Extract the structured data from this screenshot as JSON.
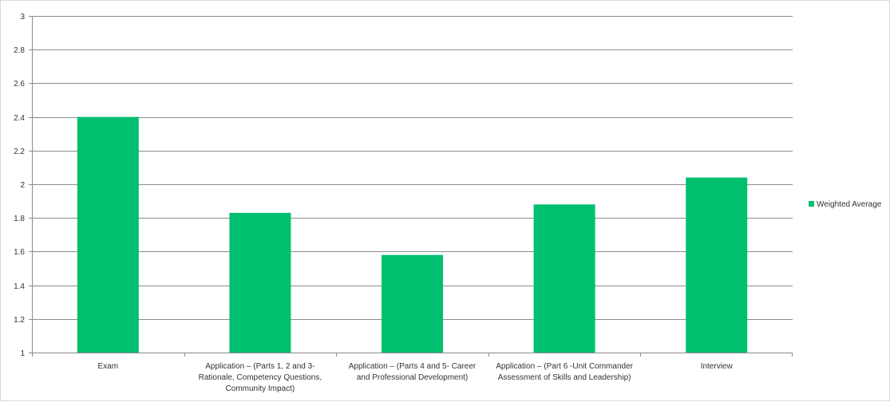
{
  "chart_data": {
    "type": "bar",
    "categories": [
      [
        "Exam"
      ],
      [
        "Application – (Parts 1, 2 and 3-",
        "Rationale, Competency Questions,",
        "Community Impact)"
      ],
      [
        "Application – (Parts 4 and 5- Career",
        "and Professional Development)"
      ],
      [
        "Application – (Part 6 -Unit Commander",
        "Assessment of Skills and Leadership)"
      ],
      [
        "Interview"
      ]
    ],
    "series": [
      {
        "name": "Weighted Average",
        "values": [
          2.4,
          1.83,
          1.58,
          1.88,
          2.04
        ]
      }
    ],
    "ylim": [
      1,
      3
    ],
    "yticks": [
      "1",
      "1.2",
      "1.4",
      "1.6",
      "1.8",
      "2",
      "2.2",
      "2.4",
      "2.6",
      "2.8",
      "3"
    ],
    "grid": true,
    "legend_position": "right",
    "title": "",
    "xlabel": "",
    "ylabel": ""
  },
  "colors": {
    "bar": "#00bf6f",
    "grid": "#8c8c8c",
    "axis": "#8c8c8c"
  }
}
